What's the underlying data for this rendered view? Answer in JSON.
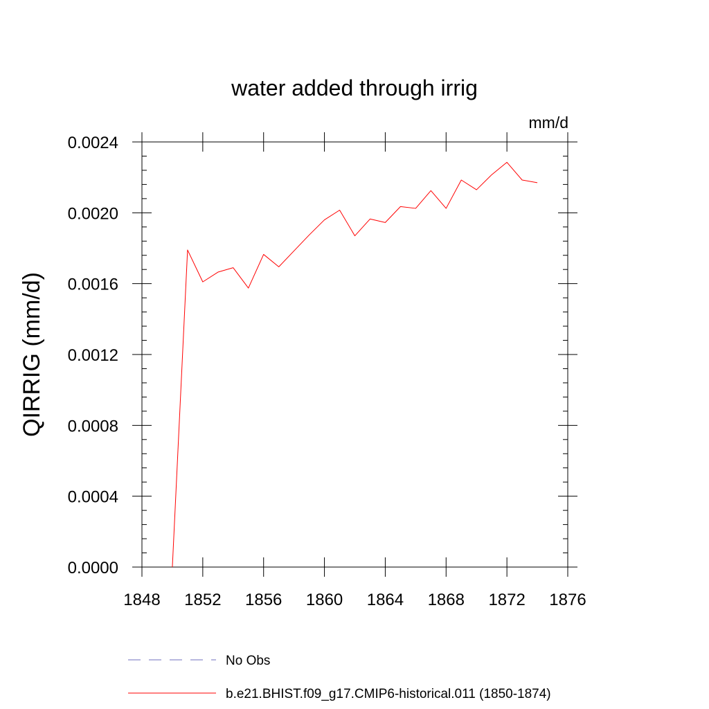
{
  "chart_data": {
    "type": "line",
    "title": "water added through irrig",
    "units_label": "mm/d",
    "xlabel": "",
    "ylabel": "QIRRIG  (mm/d)",
    "xlim": [
      1848,
      1876
    ],
    "ylim": [
      0,
      0.0024
    ],
    "x_ticks": [
      1848,
      1852,
      1856,
      1860,
      1864,
      1868,
      1872,
      1876
    ],
    "x_tick_labels": [
      "1848",
      "1852",
      "1856",
      "1860",
      "1864",
      "1868",
      "1872",
      "1876"
    ],
    "y_ticks": [
      0,
      0.0004,
      0.0008,
      0.0012,
      0.0016,
      0.002,
      0.0024
    ],
    "y_tick_labels": [
      "0.0000",
      "0.0004",
      "0.0008",
      "0.0012",
      "0.0016",
      "0.0020",
      "0.0024"
    ],
    "grid": false,
    "legend_position": "bottom",
    "series": [
      {
        "name": "b.e21.BHIST.f09_g17.CMIP6-historical.011 (1850-1874)",
        "color": "#ff0000",
        "style": "solid",
        "x": [
          1850,
          1851,
          1852,
          1853,
          1854,
          1855,
          1856,
          1857,
          1858,
          1859,
          1860,
          1861,
          1862,
          1863,
          1864,
          1865,
          1866,
          1867,
          1868,
          1869,
          1870,
          1871,
          1872,
          1873,
          1874
        ],
        "y": [
          0.0,
          0.00179,
          0.00161,
          0.001665,
          0.00169,
          0.001575,
          0.001765,
          0.001695,
          0.001785,
          0.001875,
          0.00196,
          0.002015,
          0.00187,
          0.001965,
          0.001945,
          0.002035,
          0.002025,
          0.002125,
          0.002025,
          0.002185,
          0.00213,
          0.002215,
          0.002285,
          0.002185,
          0.00217
        ]
      }
    ],
    "legend": [
      {
        "label": "No Obs",
        "color": "#6f6fbf",
        "style": "dashed"
      },
      {
        "label": "b.e21.BHIST.f09_g17.CMIP6-historical.011 (1850-1874)",
        "color": "#ff0000",
        "style": "solid"
      }
    ]
  }
}
